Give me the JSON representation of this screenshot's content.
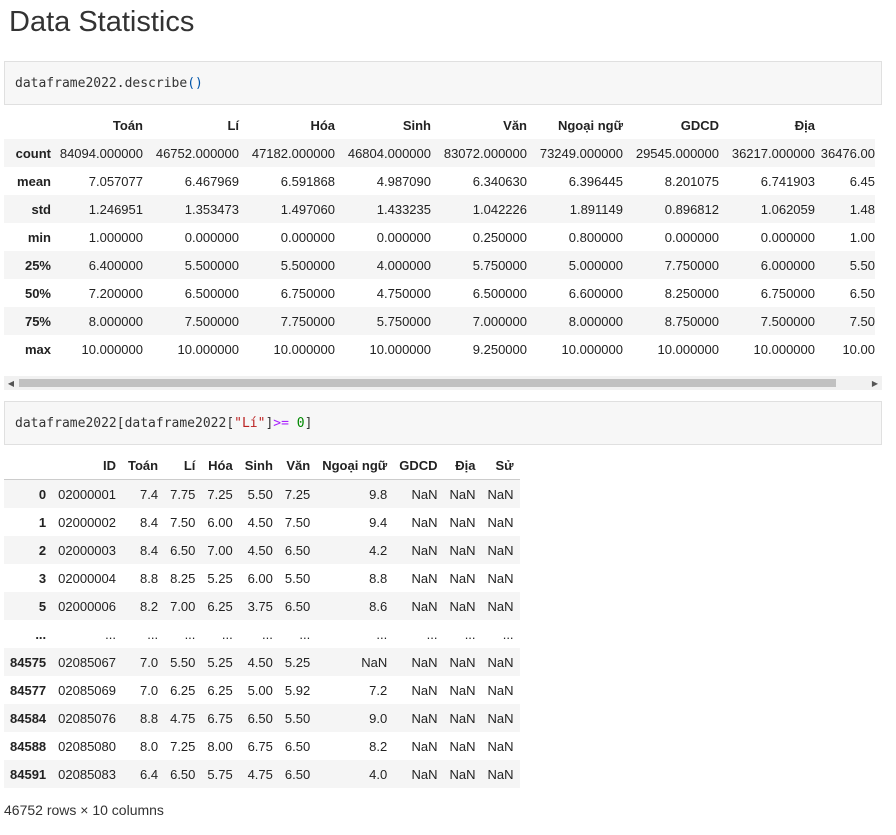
{
  "page": {
    "title": "Data Statistics"
  },
  "cell1": {
    "code": "dataframe2022.describe",
    "paren": "()"
  },
  "cell2": {
    "var": "dataframe2022[dataframe2022[",
    "str": "\"Lí\"",
    "close": "] ",
    "op": ">=",
    "num": "0",
    "end": "]"
  },
  "describe": {
    "columns": [
      "Toán",
      "Lí",
      "Hóa",
      "Sinh",
      "Văn",
      "Ngoại ngữ",
      "GDCD",
      "Địa",
      ""
    ],
    "rows": [
      {
        "label": "count",
        "values": [
          "84094.000000",
          "46752.000000",
          "47182.000000",
          "46804.000000",
          "83072.000000",
          "73249.000000",
          "29545.000000",
          "36217.000000",
          "36476.00"
        ]
      },
      {
        "label": "mean",
        "values": [
          "7.057077",
          "6.467969",
          "6.591868",
          "4.987090",
          "6.340630",
          "6.396445",
          "8.201075",
          "6.741903",
          "6.45"
        ]
      },
      {
        "label": "std",
        "values": [
          "1.246951",
          "1.353473",
          "1.497060",
          "1.433235",
          "1.042226",
          "1.891149",
          "0.896812",
          "1.062059",
          "1.48"
        ]
      },
      {
        "label": "min",
        "values": [
          "1.000000",
          "0.000000",
          "0.000000",
          "0.000000",
          "0.250000",
          "0.800000",
          "0.000000",
          "0.000000",
          "1.00"
        ]
      },
      {
        "label": "25%",
        "values": [
          "6.400000",
          "5.500000",
          "5.500000",
          "4.000000",
          "5.750000",
          "5.000000",
          "7.750000",
          "6.000000",
          "5.50"
        ]
      },
      {
        "label": "50%",
        "values": [
          "7.200000",
          "6.500000",
          "6.750000",
          "4.750000",
          "6.500000",
          "6.600000",
          "8.250000",
          "6.750000",
          "6.50"
        ]
      },
      {
        "label": "75%",
        "values": [
          "8.000000",
          "7.500000",
          "7.750000",
          "5.750000",
          "7.000000",
          "8.000000",
          "8.750000",
          "7.500000",
          "7.50"
        ]
      },
      {
        "label": "max",
        "values": [
          "10.000000",
          "10.000000",
          "10.000000",
          "10.000000",
          "9.250000",
          "10.000000",
          "10.000000",
          "10.000000",
          "10.00"
        ]
      }
    ]
  },
  "data": {
    "columns": [
      "ID",
      "Toán",
      "Lí",
      "Hóa",
      "Sinh",
      "Văn",
      "Ngoại ngữ",
      "GDCD",
      "Địa",
      "Sử"
    ],
    "rows": [
      {
        "label": "0",
        "values": [
          "02000001",
          "7.4",
          "7.75",
          "7.25",
          "5.50",
          "7.25",
          "9.8",
          "NaN",
          "NaN",
          "NaN"
        ]
      },
      {
        "label": "1",
        "values": [
          "02000002",
          "8.4",
          "7.50",
          "6.00",
          "4.50",
          "7.50",
          "9.4",
          "NaN",
          "NaN",
          "NaN"
        ]
      },
      {
        "label": "2",
        "values": [
          "02000003",
          "8.4",
          "6.50",
          "7.00",
          "4.50",
          "6.50",
          "4.2",
          "NaN",
          "NaN",
          "NaN"
        ]
      },
      {
        "label": "3",
        "values": [
          "02000004",
          "8.8",
          "8.25",
          "5.25",
          "6.00",
          "5.50",
          "8.8",
          "NaN",
          "NaN",
          "NaN"
        ]
      },
      {
        "label": "5",
        "values": [
          "02000006",
          "8.2",
          "7.00",
          "6.25",
          "3.75",
          "6.50",
          "8.6",
          "NaN",
          "NaN",
          "NaN"
        ]
      },
      {
        "label": "...",
        "values": [
          "...",
          "...",
          "...",
          "...",
          "...",
          "...",
          "...",
          "...",
          "...",
          "..."
        ]
      },
      {
        "label": "84575",
        "values": [
          "02085067",
          "7.0",
          "5.50",
          "5.25",
          "4.50",
          "5.25",
          "NaN",
          "NaN",
          "NaN",
          "NaN"
        ]
      },
      {
        "label": "84577",
        "values": [
          "02085069",
          "7.0",
          "6.25",
          "6.25",
          "5.00",
          "5.92",
          "7.2",
          "NaN",
          "NaN",
          "NaN"
        ]
      },
      {
        "label": "84584",
        "values": [
          "02085076",
          "8.8",
          "4.75",
          "6.75",
          "6.50",
          "5.50",
          "9.0",
          "NaN",
          "NaN",
          "NaN"
        ]
      },
      {
        "label": "84588",
        "values": [
          "02085080",
          "8.0",
          "7.25",
          "8.00",
          "6.75",
          "6.50",
          "8.2",
          "NaN",
          "NaN",
          "NaN"
        ]
      },
      {
        "label": "84591",
        "values": [
          "02085083",
          "6.4",
          "6.50",
          "5.75",
          "4.75",
          "6.50",
          "4.0",
          "NaN",
          "NaN",
          "NaN"
        ]
      }
    ],
    "shape": "46752 rows × 10 columns"
  },
  "scrollbar": {
    "left_icon": "triangle-left-icon",
    "right_icon": "triangle-right-icon"
  }
}
